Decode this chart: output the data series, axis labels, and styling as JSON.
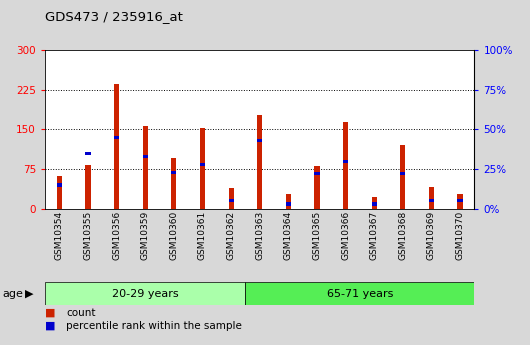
{
  "title": "GDS473 / 235916_at",
  "samples": [
    "GSM10354",
    "GSM10355",
    "GSM10356",
    "GSM10359",
    "GSM10360",
    "GSM10361",
    "GSM10362",
    "GSM10363",
    "GSM10364",
    "GSM10365",
    "GSM10366",
    "GSM10367",
    "GSM10368",
    "GSM10369",
    "GSM10370"
  ],
  "counts": [
    62,
    82,
    235,
    157,
    95,
    152,
    40,
    178,
    28,
    80,
    163,
    22,
    120,
    42,
    28
  ],
  "percentiles": [
    15,
    35,
    45,
    33,
    23,
    28,
    5,
    43,
    3,
    22,
    30,
    3,
    22,
    5,
    5
  ],
  "group1": {
    "label": "20-29 years",
    "n": 7,
    "color": "#aaffaa"
  },
  "group2": {
    "label": "65-71 years",
    "n": 8,
    "color": "#55ee55"
  },
  "bar_color": "#cc2200",
  "pct_color": "#0000cc",
  "ylim_left": [
    0,
    300
  ],
  "ylim_right": [
    0,
    100
  ],
  "yticks_left": [
    0,
    75,
    150,
    225,
    300
  ],
  "yticks_right": [
    0,
    25,
    50,
    75,
    100
  ],
  "ytick_labels_right": [
    "0%",
    "25%",
    "50%",
    "75%",
    "100%"
  ],
  "background_color": "#d8d8d8",
  "plot_bg": "white",
  "age_label": "age",
  "legend_count": "count",
  "legend_pct": "percentile rank within the sample"
}
